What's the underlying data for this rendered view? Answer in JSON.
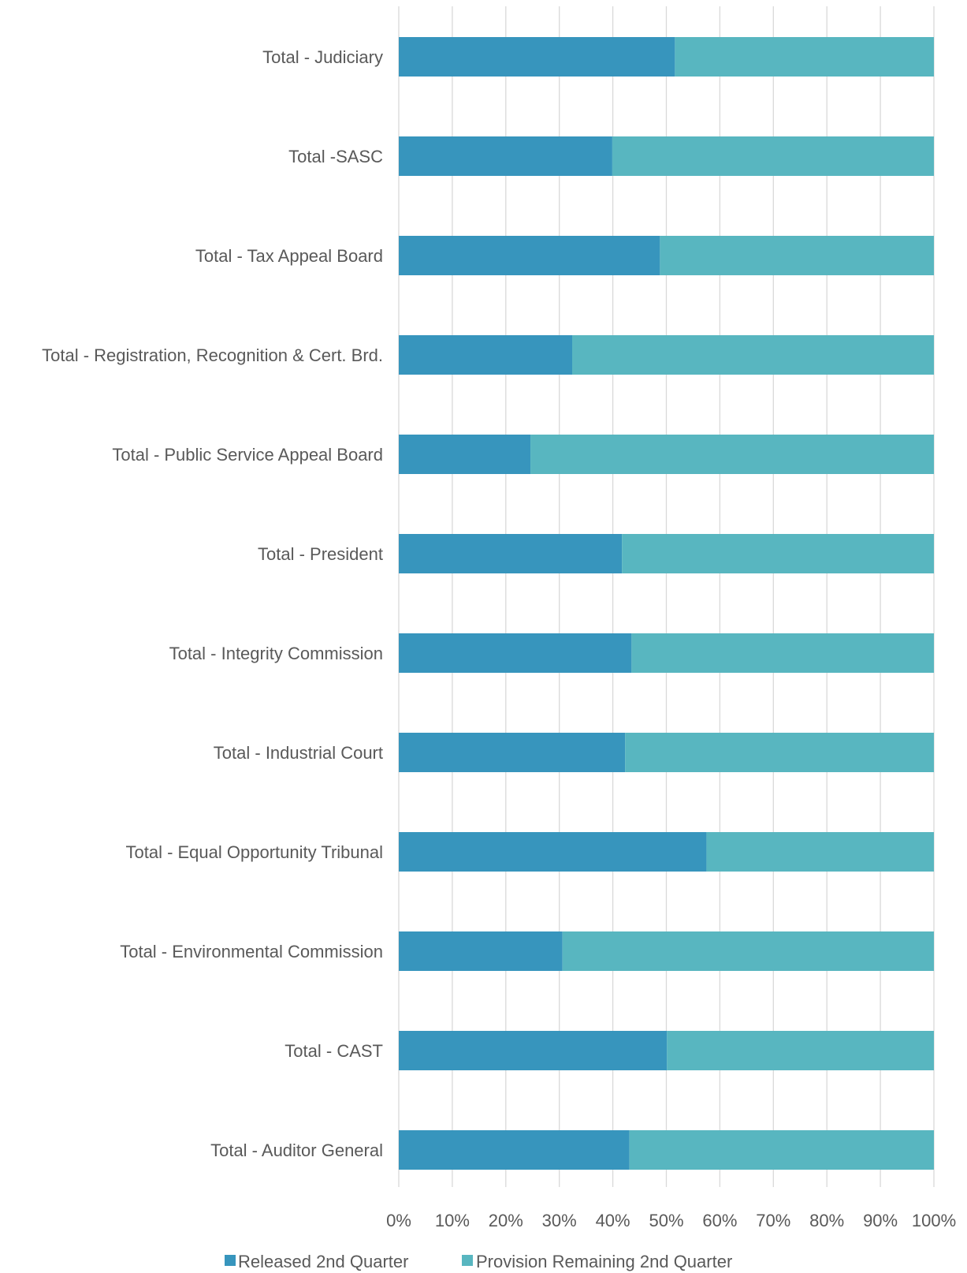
{
  "chart_data": {
    "type": "bar",
    "orientation": "horizontal",
    "stacking": "percent",
    "categories": [
      "Total - Judiciary",
      "Total -SASC",
      "Total - Tax Appeal Board",
      "Total - Registration, Recognition & Cert. Brd.",
      "Total - Public Service Appeal Board",
      "Total - President",
      "Total - Integrity Commission",
      "Total - Industrial Court",
      "Total - Equal Opportunity Tribunal",
      "Total - Environmental Commission",
      "Total - CAST",
      "Total - Auditor General"
    ],
    "series": [
      {
        "name": "Released 2nd Quarter",
        "color": "#3795bd",
        "values": [
          51.6,
          39.9,
          48.8,
          32.4,
          24.6,
          41.7,
          43.5,
          42.3,
          57.5,
          30.6,
          50.1,
          43.1
        ]
      },
      {
        "name": "Provision Remaining 2nd Quarter",
        "color": "#58b6c0",
        "values": [
          48.4,
          60.1,
          51.2,
          67.6,
          75.4,
          58.3,
          56.5,
          57.7,
          42.5,
          69.4,
          49.9,
          56.9
        ]
      }
    ],
    "xlim": [
      0,
      100
    ],
    "x_ticks": [
      "0%",
      "10%",
      "20%",
      "30%",
      "40%",
      "50%",
      "60%",
      "70%",
      "80%",
      "90%",
      "100%"
    ],
    "grid": true,
    "legend_position": "bottom",
    "title": "",
    "xlabel": "",
    "ylabel": ""
  }
}
